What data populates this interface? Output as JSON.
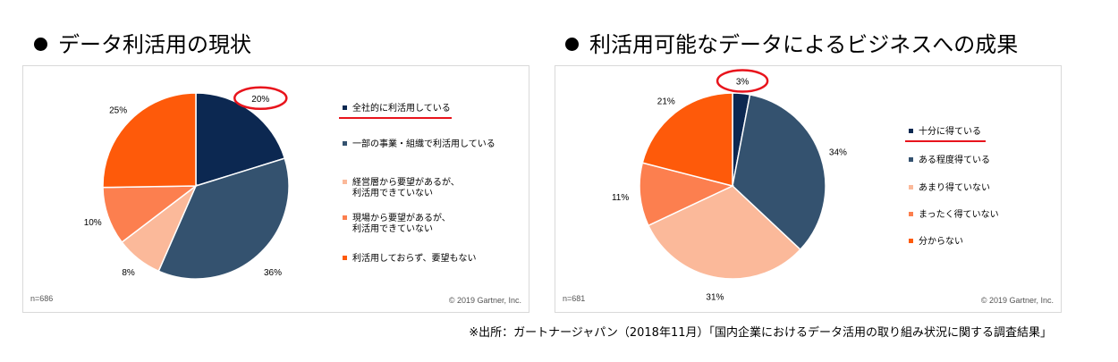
{
  "headings": {
    "left": "データ利活用の現状",
    "right": "利活用可能なデータによるビジネスへの成果"
  },
  "colors": {
    "navy": "#0c2851",
    "slate": "#34526f",
    "peach": "#fbb99a",
    "coral": "#fc7f4f",
    "orange": "#fe5a0a",
    "highlight_red": "#e8141c"
  },
  "chart_data": [
    {
      "type": "pie",
      "title": "データ利活用の現状",
      "note": "n=686",
      "copyright": "© 2019 Gartner, Inc.",
      "highlight_value_label": "20%",
      "slices": [
        {
          "label": "全社的に利活用している",
          "value": 20,
          "value_label": "20%",
          "color": "#0c2851"
        },
        {
          "label": "一部の事業・組織で利活用している",
          "value": 36,
          "value_label": "36%",
          "color": "#34526f"
        },
        {
          "label": "経営層から要望があるが、\n利活用できていない",
          "value": 8,
          "value_label": "8%",
          "color": "#fbb99a"
        },
        {
          "label": "現場から要望があるが、\n利活用できていない",
          "value": 10,
          "value_label": "10%",
          "color": "#fc7f4f"
        },
        {
          "label": "利活用しておらず、要望もない",
          "value": 25,
          "value_label": "25%",
          "color": "#fe5a0a"
        }
      ]
    },
    {
      "type": "pie",
      "title": "利活用可能なデータによるビジネスへの成果",
      "note": "n=681",
      "copyright": "© 2019 Gartner, Inc.",
      "highlight_value_label": "3%",
      "slices": [
        {
          "label": "十分に得ている",
          "value": 3,
          "value_label": "3%",
          "color": "#0c2851"
        },
        {
          "label": "ある程度得ている",
          "value": 34,
          "value_label": "34%",
          "color": "#34526f"
        },
        {
          "label": "あまり得ていない",
          "value": 31,
          "value_label": "31%",
          "color": "#fbb99a"
        },
        {
          "label": "まったく得ていない",
          "value": 11,
          "value_label": "11%",
          "color": "#fc7f4f"
        },
        {
          "label": "分からない",
          "value": 21,
          "value_label": "21%",
          "color": "#fe5a0a"
        }
      ]
    }
  ],
  "source": "※出所：ガートナージャパン（2018年11月）「国内企業におけるデータ活用の取り組み状況に関する調査結果」"
}
